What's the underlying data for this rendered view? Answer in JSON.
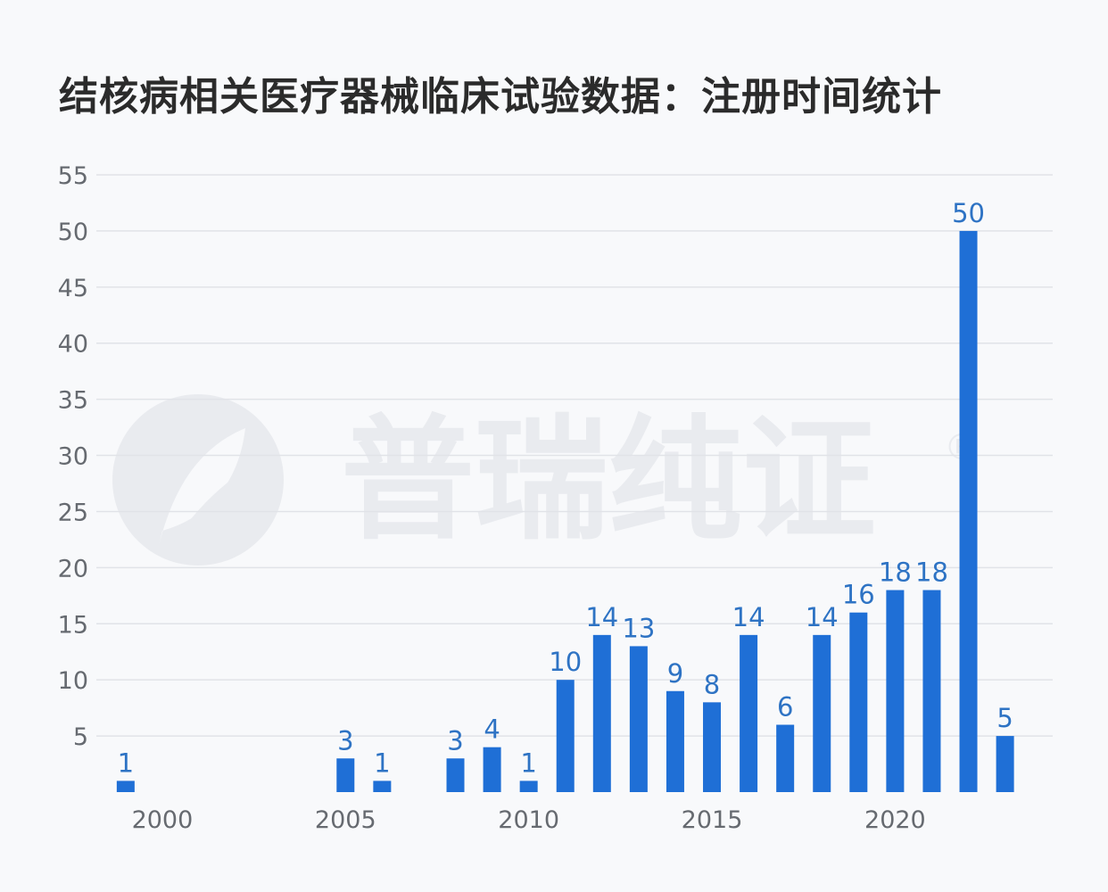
{
  "title": "结核病相关医疗器械临床试验数据：注册时间统计",
  "watermark": {
    "text": "普瑞纯证",
    "mark": "®",
    "icon": "leaf-logo-icon",
    "color": "#e9ebef"
  },
  "chart_data": {
    "type": "bar",
    "title": "结核病相关医疗器械临床试验数据：注册时间统计",
    "xlabel": "",
    "ylabel": "",
    "x": [
      1999,
      2005,
      2006,
      2008,
      2009,
      2010,
      2011,
      2012,
      2013,
      2014,
      2015,
      2016,
      2017,
      2018,
      2019,
      2020,
      2021,
      2022,
      2023
    ],
    "values": [
      1,
      3,
      1,
      3,
      4,
      1,
      10,
      14,
      13,
      9,
      8,
      14,
      6,
      14,
      16,
      18,
      18,
      50,
      5
    ],
    "x_ticks": [
      2000,
      2005,
      2010,
      2015,
      2020
    ],
    "y_ticks": [
      5,
      10,
      15,
      20,
      25,
      30,
      35,
      40,
      45,
      50,
      55
    ],
    "xlim": [
      1998.2,
      2024.3
    ],
    "ylim": [
      0,
      55
    ],
    "grid": "horizontal",
    "bar_color": "#1f6fd6",
    "label_color": "#2e73c4",
    "grid_color": "#e1e3e8"
  }
}
